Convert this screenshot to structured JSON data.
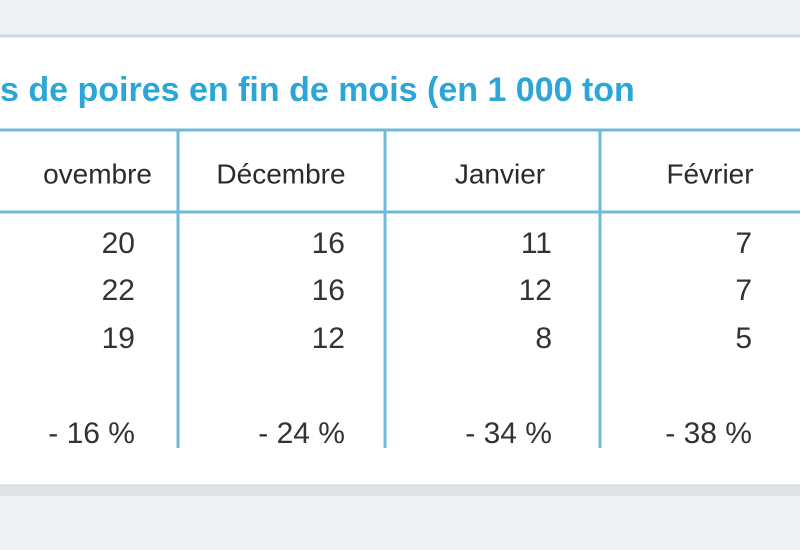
{
  "title": "s de poires en fin de mois (en 1 000 ton",
  "table": {
    "header": [
      "ovembre",
      "Décembre",
      "Janvier",
      "Février"
    ],
    "rows": [
      [
        20,
        16,
        11,
        7
      ],
      [
        22,
        16,
        12,
        7
      ],
      [
        19,
        12,
        8,
        5
      ],
      [
        "- 16 %",
        "- 24 %",
        "- 34 %",
        "- 38 %"
      ]
    ]
  }
}
